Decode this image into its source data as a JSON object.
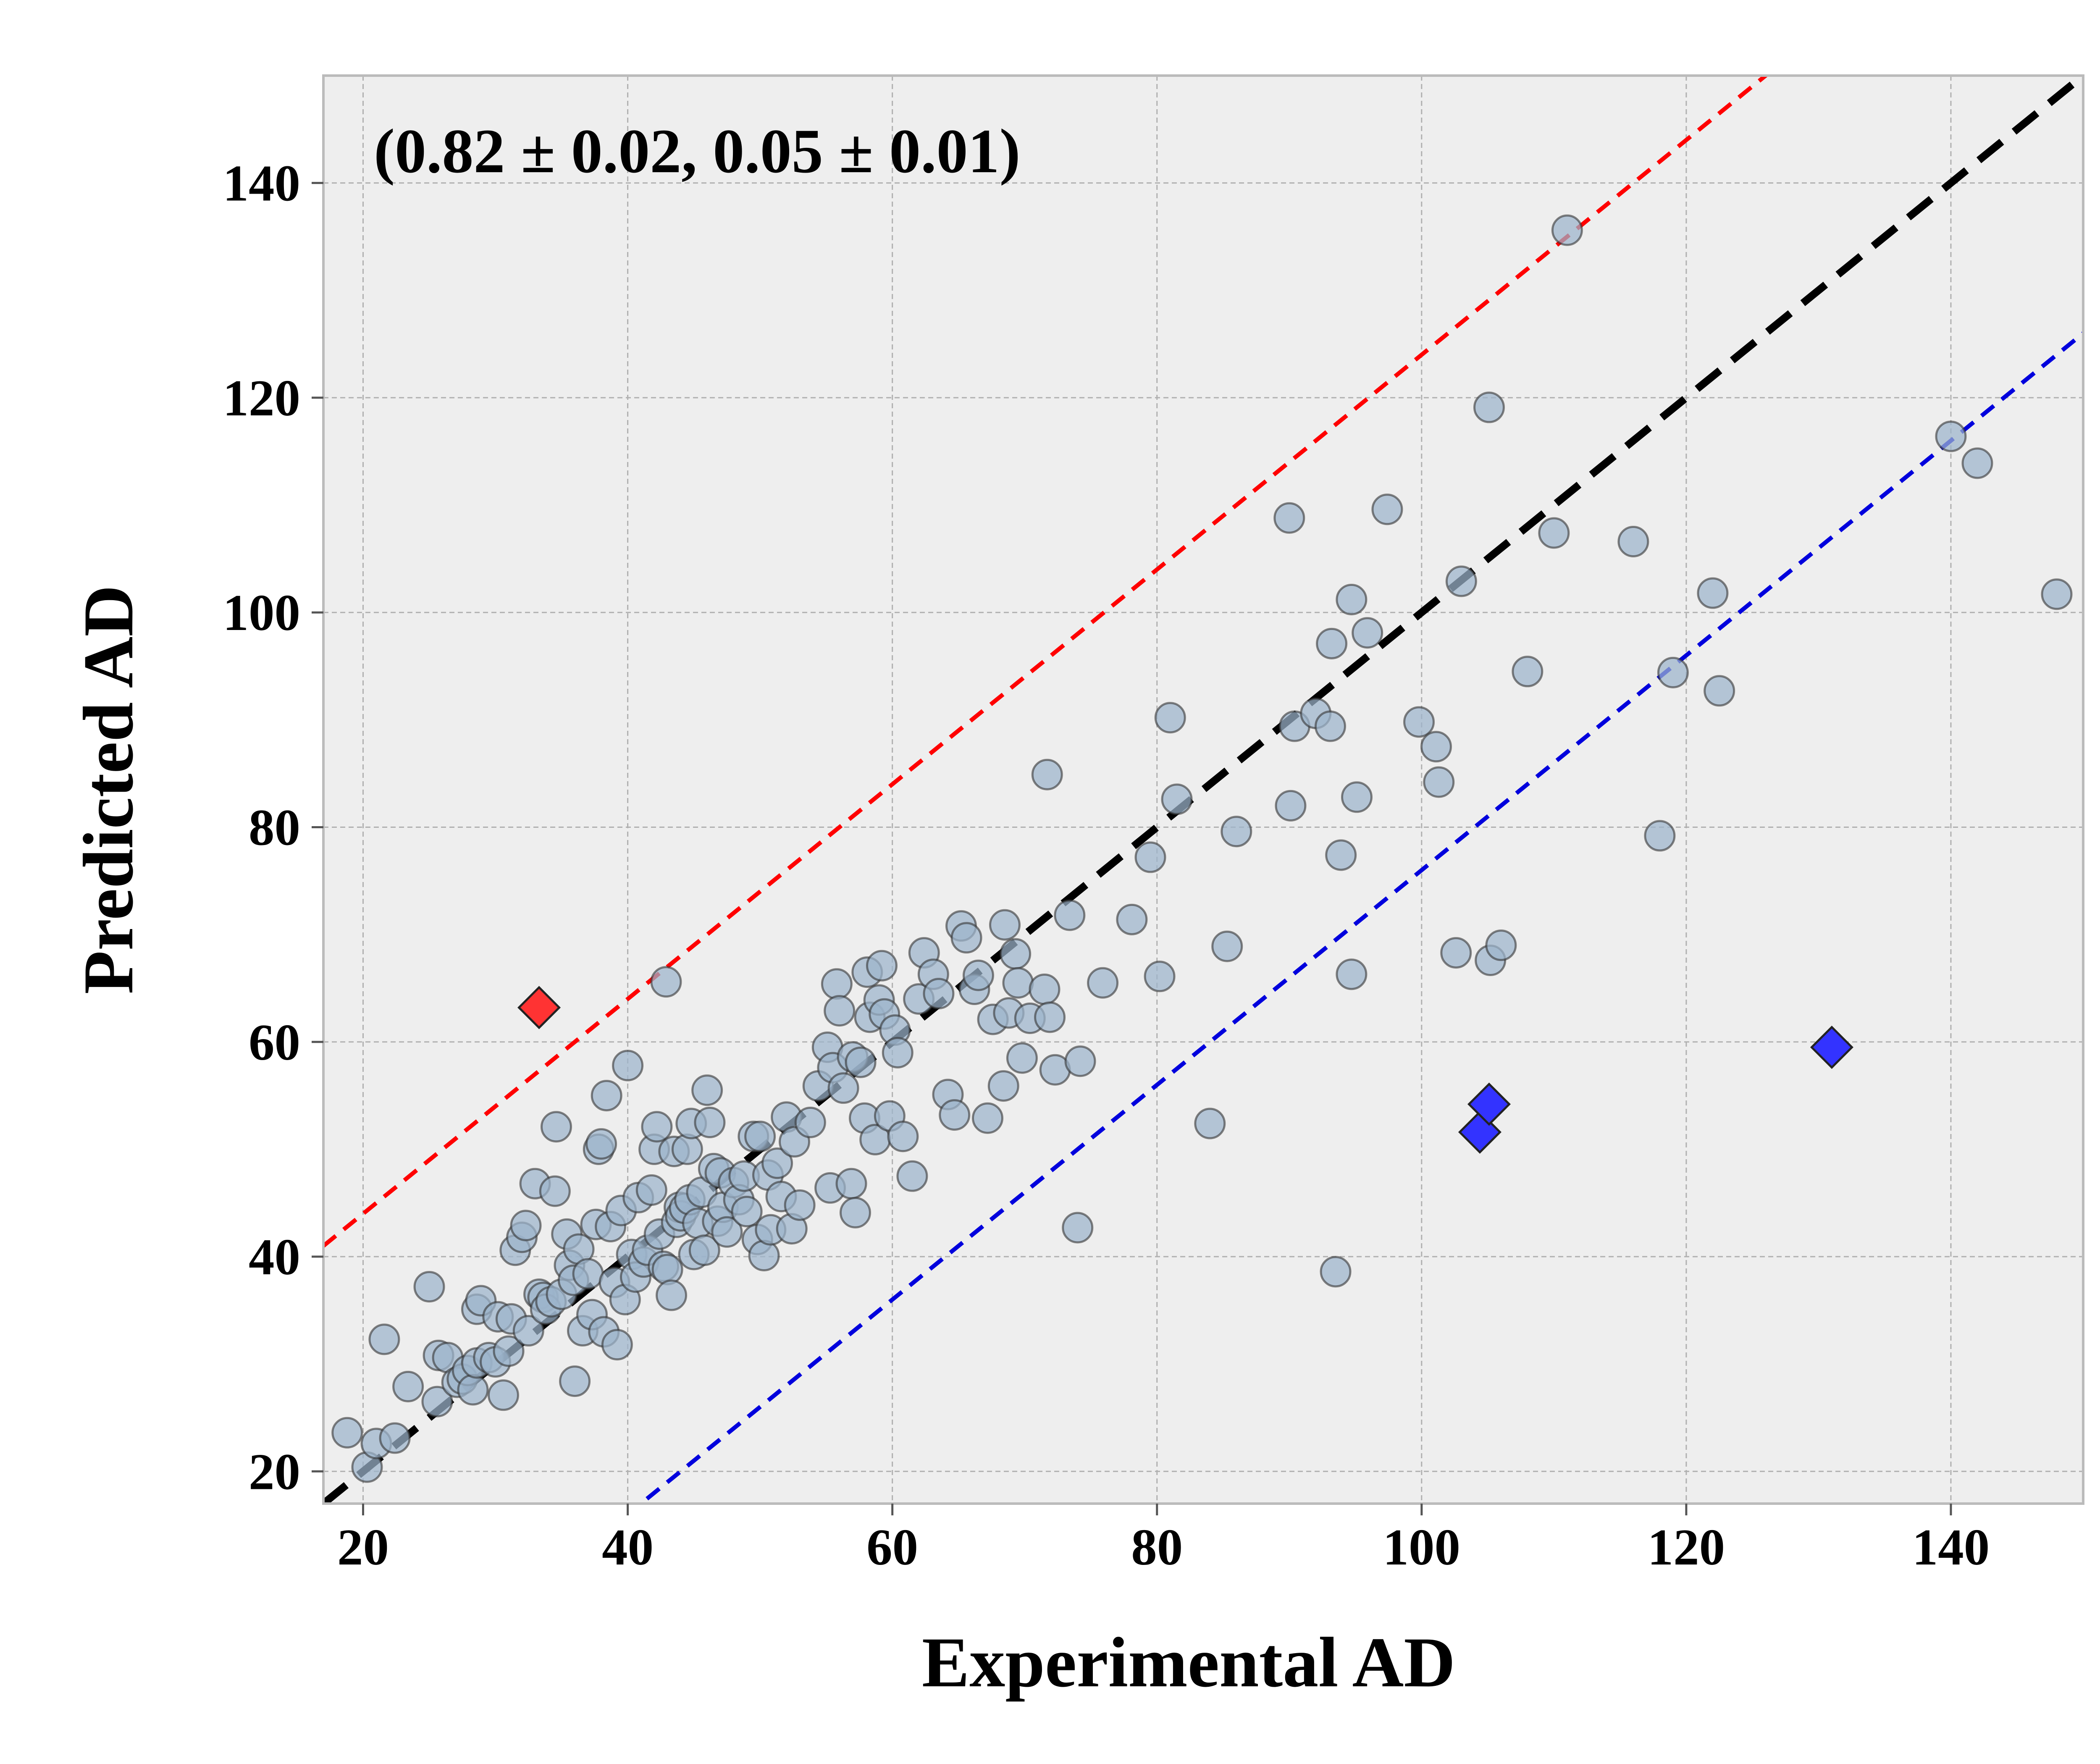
{
  "chart_data": {
    "type": "scatter",
    "title": "",
    "xlabel": "Experimental AD",
    "ylabel": "Predicted AD",
    "xlim": [
      17,
      150
    ],
    "ylim": [
      17,
      150
    ],
    "xticks": [
      20,
      40,
      60,
      80,
      100,
      120,
      140
    ],
    "yticks": [
      20,
      40,
      60,
      80,
      100,
      120,
      140
    ],
    "grid": true,
    "annotation": "(0.82 ± 0.02, 0.05 ± 0.01)",
    "colors": {
      "background": "#eeeeee",
      "point_fill": "#9db4cc",
      "point_edge": "#333333",
      "identity_line": "#000000",
      "upper_line": "#ff0000",
      "lower_line": "#0000dd",
      "outlier_high": "#ff3333",
      "outlier_low": "#3333ff"
    },
    "reference_lines": [
      {
        "role": "identity",
        "slope": 1,
        "intercept": 0
      },
      {
        "role": "upper",
        "slope": 1,
        "intercept": 24
      },
      {
        "role": "lower",
        "slope": 1,
        "intercept": -24
      }
    ],
    "outliers_high": [
      [
        33.3,
        63.2
      ]
    ],
    "outliers_low": [
      [
        104.4,
        51.6
      ],
      [
        105.1,
        54.2
      ],
      [
        131.0,
        59.5
      ]
    ],
    "points": [
      [
        18.8,
        23.6
      ],
      [
        20.3,
        20.4
      ],
      [
        21.0,
        22.6
      ],
      [
        21.6,
        32.3
      ],
      [
        22.4,
        23.1
      ],
      [
        23.4,
        27.9
      ],
      [
        25.0,
        37.2
      ],
      [
        25.6,
        26.5
      ],
      [
        25.7,
        30.8
      ],
      [
        26.4,
        30.6
      ],
      [
        27.1,
        28.3
      ],
      [
        27.5,
        28.6
      ],
      [
        27.9,
        29.4
      ],
      [
        28.3,
        27.6
      ],
      [
        28.6,
        30.1
      ],
      [
        28.6,
        35.1
      ],
      [
        28.9,
        35.9
      ],
      [
        29.5,
        30.6
      ],
      [
        30.0,
        30.2
      ],
      [
        30.2,
        34.4
      ],
      [
        30.6,
        27.1
      ],
      [
        31.0,
        31.2
      ],
      [
        31.2,
        34.2
      ],
      [
        31.5,
        40.6
      ],
      [
        32.0,
        41.8
      ],
      [
        32.3,
        42.9
      ],
      [
        32.5,
        33.1
      ],
      [
        33.0,
        46.8
      ],
      [
        33.3,
        36.5
      ],
      [
        33.6,
        36.2
      ],
      [
        33.8,
        35.1
      ],
      [
        34.2,
        35.8
      ],
      [
        34.5,
        46.1
      ],
      [
        34.6,
        52.1
      ],
      [
        35.0,
        36.5
      ],
      [
        35.4,
        42.1
      ],
      [
        35.6,
        39.2
      ],
      [
        35.9,
        37.8
      ],
      [
        36.0,
        28.4
      ],
      [
        36.3,
        40.7
      ],
      [
        36.6,
        33.1
      ],
      [
        37.0,
        38.4
      ],
      [
        37.3,
        34.6
      ],
      [
        37.6,
        43.0
      ],
      [
        37.8,
        50.0
      ],
      [
        38.0,
        50.5
      ],
      [
        38.2,
        33.0
      ],
      [
        38.4,
        55.0
      ],
      [
        38.7,
        42.8
      ],
      [
        39.0,
        37.6
      ],
      [
        39.2,
        31.8
      ],
      [
        39.5,
        44.3
      ],
      [
        39.8,
        36.0
      ],
      [
        40.0,
        57.8
      ],
      [
        40.3,
        40.2
      ],
      [
        40.6,
        38.1
      ],
      [
        40.8,
        45.5
      ],
      [
        41.2,
        39.5
      ],
      [
        41.5,
        40.6
      ],
      [
        41.8,
        46.2
      ],
      [
        42.0,
        50.0
      ],
      [
        42.2,
        52.1
      ],
      [
        42.4,
        42.1
      ],
      [
        42.7,
        39.1
      ],
      [
        42.9,
        65.6
      ],
      [
        43.0,
        38.8
      ],
      [
        43.3,
        36.4
      ],
      [
        43.5,
        49.8
      ],
      [
        43.7,
        43.2
      ],
      [
        43.9,
        44.6
      ],
      [
        44.0,
        43.8
      ],
      [
        44.3,
        44.5
      ],
      [
        44.5,
        50.0
      ],
      [
        44.7,
        45.3
      ],
      [
        44.8,
        52.4
      ],
      [
        45.0,
        40.2
      ],
      [
        45.3,
        43.1
      ],
      [
        45.6,
        46.0
      ],
      [
        45.8,
        40.6
      ],
      [
        46.0,
        55.5
      ],
      [
        46.2,
        52.5
      ],
      [
        46.5,
        48.2
      ],
      [
        46.8,
        43.3
      ],
      [
        47.0,
        47.8
      ],
      [
        47.2,
        44.6
      ],
      [
        47.5,
        42.3
      ],
      [
        48.0,
        46.9
      ],
      [
        48.4,
        45.3
      ],
      [
        48.8,
        47.5
      ],
      [
        49.0,
        44.2
      ],
      [
        49.5,
        51.2
      ],
      [
        49.8,
        41.6
      ],
      [
        50.0,
        51.2
      ],
      [
        50.3,
        40.1
      ],
      [
        50.6,
        47.6
      ],
      [
        50.8,
        42.5
      ],
      [
        51.3,
        48.7
      ],
      [
        51.6,
        45.6
      ],
      [
        52.0,
        53.0
      ],
      [
        52.4,
        42.6
      ],
      [
        52.6,
        50.7
      ],
      [
        53.0,
        44.8
      ],
      [
        53.8,
        52.5
      ],
      [
        54.4,
        55.9
      ],
      [
        55.1,
        59.5
      ],
      [
        55.3,
        46.4
      ],
      [
        55.5,
        57.6
      ],
      [
        55.8,
        65.4
      ],
      [
        56.0,
        62.9
      ],
      [
        56.3,
        55.7
      ],
      [
        56.9,
        46.8
      ],
      [
        57.0,
        58.6
      ],
      [
        57.2,
        44.1
      ],
      [
        57.6,
        58.1
      ],
      [
        57.9,
        52.9
      ],
      [
        58.1,
        66.5
      ],
      [
        58.3,
        62.3
      ],
      [
        58.7,
        50.9
      ],
      [
        59.0,
        63.9
      ],
      [
        59.2,
        67.1
      ],
      [
        59.4,
        62.6
      ],
      [
        59.8,
        53.1
      ],
      [
        60.2,
        61.1
      ],
      [
        60.4,
        59.0
      ],
      [
        60.8,
        51.2
      ],
      [
        61.5,
        47.5
      ],
      [
        62.0,
        64.0
      ],
      [
        62.4,
        68.3
      ],
      [
        63.1,
        66.3
      ],
      [
        63.5,
        64.5
      ],
      [
        64.2,
        55.1
      ],
      [
        64.7,
        53.2
      ],
      [
        65.2,
        70.8
      ],
      [
        65.6,
        69.7
      ],
      [
        66.2,
        64.9
      ],
      [
        66.5,
        66.2
      ],
      [
        67.2,
        52.9
      ],
      [
        67.6,
        62.1
      ],
      [
        68.4,
        55.9
      ],
      [
        68.5,
        70.9
      ],
      [
        68.8,
        62.7
      ],
      [
        69.3,
        68.2
      ],
      [
        69.5,
        65.5
      ],
      [
        69.8,
        58.5
      ],
      [
        70.4,
        62.2
      ],
      [
        71.5,
        64.9
      ],
      [
        71.7,
        84.9
      ],
      [
        71.9,
        62.3
      ],
      [
        72.3,
        57.4
      ],
      [
        73.4,
        71.8
      ],
      [
        74.0,
        42.7
      ],
      [
        74.2,
        58.2
      ],
      [
        75.9,
        65.5
      ],
      [
        78.1,
        71.4
      ],
      [
        79.5,
        77.2
      ],
      [
        80.2,
        66.1
      ],
      [
        81.0,
        90.2
      ],
      [
        81.5,
        82.6
      ],
      [
        84.0,
        52.4
      ],
      [
        85.3,
        68.9
      ],
      [
        86.0,
        79.6
      ],
      [
        90.0,
        108.8
      ],
      [
        90.1,
        82.0
      ],
      [
        90.4,
        89.4
      ],
      [
        92.0,
        90.6
      ],
      [
        93.1,
        89.4
      ],
      [
        93.2,
        97.1
      ],
      [
        93.5,
        38.6
      ],
      [
        93.9,
        77.4
      ],
      [
        94.7,
        66.3
      ],
      [
        94.7,
        101.2
      ],
      [
        95.1,
        82.8
      ],
      [
        95.9,
        98.1
      ],
      [
        97.4,
        109.6
      ],
      [
        99.8,
        89.8
      ],
      [
        101.1,
        87.5
      ],
      [
        101.3,
        84.2
      ],
      [
        102.6,
        68.3
      ],
      [
        103.0,
        102.9
      ],
      [
        105.1,
        119.1
      ],
      [
        105.2,
        67.6
      ],
      [
        106.0,
        69.0
      ],
      [
        108.0,
        94.5
      ],
      [
        110.0,
        107.4
      ],
      [
        111.0,
        135.6
      ],
      [
        116.0,
        106.6
      ],
      [
        118.0,
        79.2
      ],
      [
        119.0,
        94.4
      ],
      [
        122.0,
        101.8
      ],
      [
        122.5,
        92.7
      ],
      [
        140.0,
        116.4
      ],
      [
        142.0,
        113.9
      ],
      [
        148.0,
        101.7
      ]
    ]
  }
}
